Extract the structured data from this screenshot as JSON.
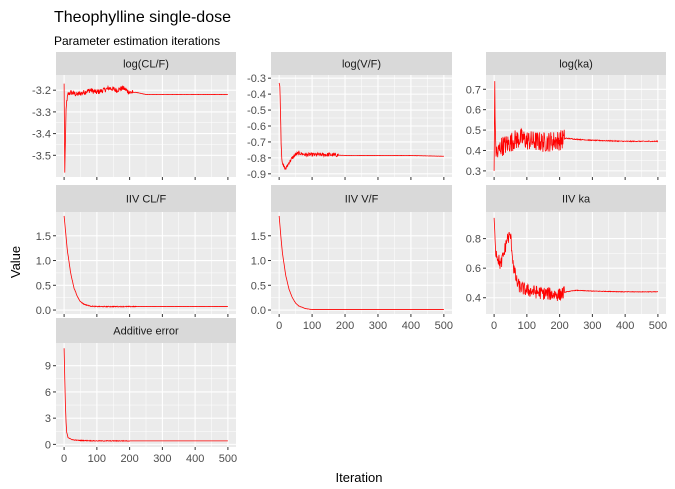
{
  "chart_data": {
    "type": "line",
    "title": "Theophylline single-dose",
    "subtitle": "Parameter estimation iterations",
    "xlabel": "Iteration",
    "ylabel": "Value",
    "xlim": [
      0,
      500
    ],
    "x_ticks": [
      0,
      100,
      200,
      300,
      400,
      500
    ],
    "line_color": "#ff0000",
    "panel_bg": "#ebebeb",
    "strip_bg": "#d9d9d9",
    "grid": true,
    "facets": [
      {
        "title": "log(CL/F)",
        "ylim": [
          -3.6,
          -3.13
        ],
        "y_ticks": [
          -3.5,
          -3.4,
          -3.3,
          -3.2
        ],
        "y_tick_labels": [
          "-3.5",
          "-3.4",
          "-3.3",
          "-3.2"
        ],
        "x": [
          0,
          2,
          4,
          6,
          8,
          12,
          20,
          40,
          60,
          80,
          100,
          120,
          140,
          160,
          180,
          200,
          220,
          250,
          300,
          400,
          500
        ],
        "y": [
          -3.17,
          -3.58,
          -3.43,
          -3.3,
          -3.25,
          -3.22,
          -3.21,
          -3.22,
          -3.21,
          -3.2,
          -3.21,
          -3.2,
          -3.19,
          -3.2,
          -3.19,
          -3.21,
          -3.21,
          -3.22,
          -3.22,
          -3.22,
          -3.22
        ],
        "noise": 0.012,
        "noise_end": 210
      },
      {
        "title": "log(V/F)",
        "ylim": [
          -0.92,
          -0.28
        ],
        "y_ticks": [
          -0.9,
          -0.8,
          -0.7,
          -0.6,
          -0.5,
          -0.4,
          -0.3
        ],
        "y_tick_labels": [
          "-0.9",
          "-0.8",
          "-0.7",
          "-0.6",
          "-0.5",
          "-0.4",
          "-0.3"
        ],
        "x": [
          0,
          2,
          4,
          6,
          8,
          12,
          16,
          20,
          30,
          40,
          50,
          60,
          80,
          100,
          150,
          200,
          250,
          300,
          400,
          500
        ],
        "y": [
          -0.33,
          -0.35,
          -0.5,
          -0.7,
          -0.8,
          -0.85,
          -0.86,
          -0.87,
          -0.83,
          -0.8,
          -0.78,
          -0.77,
          -0.78,
          -0.78,
          -0.78,
          -0.785,
          -0.785,
          -0.785,
          -0.785,
          -0.79
        ],
        "noise": 0.012,
        "noise_end": 180
      },
      {
        "title": "log(ka)",
        "ylim": [
          0.27,
          0.77
        ],
        "y_ticks": [
          0.3,
          0.4,
          0.5,
          0.6,
          0.7
        ],
        "y_tick_labels": [
          "0.3",
          "0.4",
          "0.5",
          "0.6",
          "0.7"
        ],
        "x": [
          0,
          2,
          4,
          6,
          10,
          20,
          40,
          60,
          80,
          100,
          150,
          200,
          220,
          250,
          300,
          400,
          500
        ],
        "y": [
          0.3,
          0.74,
          0.45,
          0.4,
          0.38,
          0.42,
          0.43,
          0.45,
          0.46,
          0.45,
          0.44,
          0.45,
          0.46,
          0.455,
          0.45,
          0.445,
          0.445
        ],
        "noise": 0.05,
        "noise_end": 215
      },
      {
        "title": "IIV CL/F",
        "ylim": [
          -0.08,
          1.98
        ],
        "y_ticks": [
          0.0,
          0.5,
          1.0,
          1.5
        ],
        "y_tick_labels": [
          "0.0",
          "0.5",
          "1.0",
          "1.5"
        ],
        "x": [
          0,
          5,
          10,
          20,
          30,
          40,
          50,
          60,
          80,
          100,
          150,
          200,
          300,
          400,
          500
        ],
        "y": [
          1.9,
          1.55,
          1.2,
          0.75,
          0.45,
          0.28,
          0.17,
          0.12,
          0.08,
          0.07,
          0.07,
          0.07,
          0.07,
          0.07,
          0.07
        ],
        "noise": 0.008,
        "noise_end": 220
      },
      {
        "title": "IIV V/F",
        "ylim": [
          -0.08,
          1.98
        ],
        "y_ticks": [
          0.0,
          0.5,
          1.0,
          1.5
        ],
        "y_tick_labels": [
          "0.0",
          "0.5",
          "1.0",
          "1.5"
        ],
        "x": [
          0,
          5,
          10,
          20,
          30,
          40,
          50,
          60,
          80,
          100,
          150,
          200,
          300,
          400,
          500
        ],
        "y": [
          1.9,
          1.5,
          1.15,
          0.7,
          0.42,
          0.25,
          0.14,
          0.08,
          0.03,
          0.01,
          0.01,
          0.01,
          0.01,
          0.01,
          0.01
        ],
        "noise": 0.003,
        "noise_end": 100
      },
      {
        "title": "IIV ka",
        "ylim": [
          0.29,
          0.98
        ],
        "y_ticks": [
          0.4,
          0.6,
          0.8
        ],
        "y_tick_labels": [
          "0.4",
          "0.6",
          "0.8"
        ],
        "x": [
          0,
          2,
          5,
          10,
          20,
          30,
          40,
          50,
          60,
          70,
          80,
          100,
          150,
          200,
          220,
          250,
          300,
          400,
          500
        ],
        "y": [
          0.94,
          0.85,
          0.72,
          0.68,
          0.62,
          0.7,
          0.8,
          0.82,
          0.6,
          0.5,
          0.47,
          0.45,
          0.43,
          0.42,
          0.44,
          0.45,
          0.445,
          0.44,
          0.44
        ],
        "noise": 0.045,
        "noise_end": 215
      },
      {
        "title": "Additive error",
        "ylim": [
          -0.3,
          11.6
        ],
        "y_ticks": [
          0,
          3,
          6,
          9
        ],
        "y_tick_labels": [
          "0",
          "3",
          "6",
          "9"
        ],
        "x": [
          0,
          2,
          4,
          6,
          8,
          12,
          20,
          30,
          50,
          100,
          200,
          300,
          400,
          500
        ],
        "y": [
          11.0,
          7.5,
          4.5,
          2.5,
          1.4,
          0.8,
          0.6,
          0.5,
          0.45,
          0.4,
          0.4,
          0.4,
          0.4,
          0.4
        ],
        "noise": 0.04,
        "noise_end": 200
      }
    ]
  }
}
